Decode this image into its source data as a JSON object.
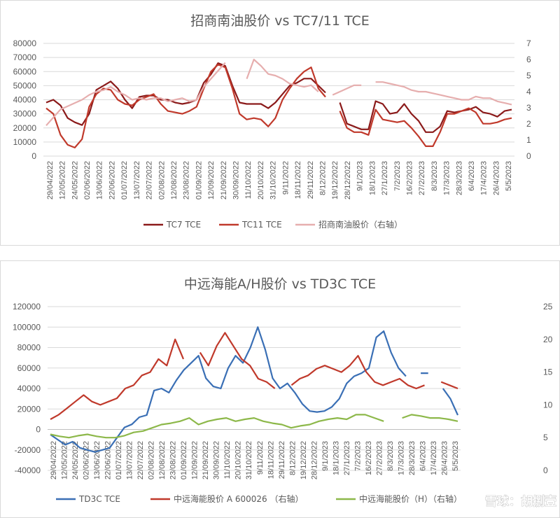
{
  "chart_data": [
    {
      "type": "line",
      "title": "招商南油股价 vs TC7/11 TCE",
      "xlabel": "",
      "ylabel": "",
      "ylim": [
        0,
        80000
      ],
      "y2lim": [
        0,
        7
      ],
      "yticks": [
        "0",
        "10000",
        "20000",
        "30000",
        "40000",
        "50000",
        "60000",
        "70000",
        "80000"
      ],
      "y2ticks": [
        "0",
        "1",
        "2",
        "3",
        "4",
        "5",
        "6",
        "7"
      ],
      "x_tick_labels": [
        "29/04/2022",
        "12/05/2022",
        "24/05/2022",
        "02/06/2022",
        "13/06/2022",
        "22/06/2022",
        "01/07/2022",
        "13/07/2022",
        "22/07/2022",
        "02/08/2022",
        "12/08/2022",
        "23/08/2022",
        "01/09/2022",
        "12/09/2022",
        "21/09/2022",
        "30/09/2022",
        "11/10/2022",
        "20/10/2022",
        "31/10/2022",
        "9/11/2022",
        "18/11/2022",
        "29/11/2022",
        "8/12/2022",
        "19/12/2022",
        "28/12/2022",
        "9/1/2023",
        "18/1/2023",
        "27/1/2023",
        "7/2/2023",
        "16/2/2023",
        "27/2/2023",
        "8/3/2023",
        "17/3/2023",
        "28/3/2023",
        "6/4/2023",
        "17/4/2023",
        "26/4/2023",
        "5/5/2023"
      ],
      "legend_position": "bottom",
      "grid": true,
      "series": [
        {
          "name": "TC7 TCE",
          "axis": "left",
          "color": "#8b1a1a",
          "values": [
            38000,
            40000,
            36000,
            27000,
            24000,
            22000,
            30000,
            47000,
            50000,
            53000,
            48000,
            40000,
            34000,
            42000,
            43000,
            43000,
            40000,
            40000,
            38000,
            37000,
            38000,
            40000,
            52000,
            58000,
            66000,
            64000,
            50000,
            38000,
            37000,
            37000,
            37000,
            34000,
            38000,
            44000,
            50000,
            52000,
            55000,
            55000,
            50000,
            45000,
            null,
            38000,
            23000,
            21000,
            19000,
            19000,
            39000,
            37000,
            30000,
            31000,
            37000,
            30000,
            25000,
            17000,
            17000,
            21000,
            32000,
            31000,
            32000,
            33000,
            35000,
            31000,
            30000,
            28000,
            32000,
            33000
          ]
        },
        {
          "name": "TC11 TCE",
          "axis": "left",
          "color": "#c0392b",
          "values": [
            34000,
            30000,
            15000,
            8000,
            6000,
            12000,
            35000,
            44000,
            48000,
            47000,
            40000,
            37000,
            36000,
            40000,
            42000,
            44000,
            37000,
            32000,
            31000,
            30000,
            32000,
            35000,
            48000,
            60000,
            65000,
            63000,
            48000,
            30000,
            26000,
            27000,
            26000,
            21000,
            27000,
            40000,
            48000,
            55000,
            60000,
            63000,
            48000,
            42000,
            null,
            32000,
            20000,
            17000,
            17000,
            15000,
            33000,
            26000,
            25000,
            24000,
            25000,
            20000,
            14000,
            7000,
            7000,
            17000,
            30000,
            30000,
            32000,
            34000,
            31000,
            23000,
            23000,
            24000,
            26000,
            27000
          ]
        },
        {
          "name": "招商南油股价（右轴）",
          "axis": "right",
          "color": "#e6aeae",
          "values": [
            1.9,
            2.4,
            2.9,
            3.1,
            3.3,
            3.5,
            3.8,
            4.0,
            4.1,
            4.3,
            4.0,
            3.8,
            3.5,
            3.6,
            3.5,
            3.6,
            3.6,
            3.4,
            3.5,
            3.6,
            3.4,
            3.5,
            4.3,
            4.8,
            5.3,
            5.8,
            null,
            null,
            4.8,
            6.0,
            5.6,
            5.1,
            5.0,
            4.8,
            4.5,
            4.4,
            4.3,
            4.4,
            4.0,
            null,
            3.8,
            4.0,
            4.2,
            4.4,
            4.4,
            null,
            4.6,
            4.6,
            4.5,
            4.4,
            4.3,
            4.1,
            4.0,
            4.0,
            3.9,
            3.8,
            3.7,
            3.6,
            3.5,
            3.5,
            3.7,
            3.6,
            3.6,
            3.4,
            3.3,
            3.2
          ]
        }
      ]
    },
    {
      "type": "line",
      "title": "中远海能A/H股价 vs TD3C TCE",
      "xlabel": "",
      "ylabel": "",
      "ylim": [
        -40000,
        120000
      ],
      "y2lim": [
        0,
        25
      ],
      "yticks": [
        "-40000",
        "-20000",
        "0",
        "20000",
        "40000",
        "60000",
        "80000",
        "100000",
        "120000"
      ],
      "y2ticks": [
        "0",
        "5",
        "10",
        "15",
        "20",
        "25"
      ],
      "x_tick_labels": [
        "29/04/2022",
        "12/05/2022",
        "24/05/2022",
        "02/06/2022",
        "13/06/2022",
        "22/06/2022",
        "01/07/2022",
        "13/07/2022",
        "22/07/2022",
        "02/08/2022",
        "12/08/2022",
        "23/08/2022",
        "01/09/2022",
        "12/09/2022",
        "21/09/2022",
        "30/09/2022",
        "11/10/2022",
        "20/10/2022",
        "31/10/2022",
        "9/11/2022",
        "18/11/2022",
        "29/11/2022",
        "8/12/2022",
        "19/12/2022",
        "28/12/2022",
        "9/1/2023",
        "18/1/2023",
        "27/1/2023",
        "7/2/2023",
        "16/2/2023",
        "27/2/2023",
        "8/3/2023",
        "17/3/2023",
        "28/3/2023",
        "6/4/2023",
        "17/4/2023",
        "26/4/2023",
        "5/5/2023"
      ],
      "legend_position": "bottom",
      "grid": true,
      "series": [
        {
          "name": "TD3C TCE",
          "axis": "left",
          "color": "#3a6fb5",
          "values": [
            -5000,
            -10000,
            -15000,
            -12000,
            -18000,
            -20000,
            -22000,
            -20000,
            -18000,
            -8000,
            2000,
            5000,
            12000,
            14000,
            38000,
            40000,
            36000,
            48000,
            58000,
            65000,
            72000,
            50000,
            42000,
            40000,
            60000,
            72000,
            65000,
            80000,
            100000,
            78000,
            50000,
            40000,
            45000,
            36000,
            25000,
            18000,
            17000,
            18000,
            22000,
            30000,
            45000,
            52000,
            55000,
            60000,
            90000,
            96000,
            75000,
            60000,
            52000,
            null,
            55000,
            55000,
            null,
            40000,
            30000,
            14000
          ]
        },
        {
          "name": "中远海能股价 A 600026 （右轴）",
          "axis": "right",
          "color": "#c0392b",
          "values": [
            7.8,
            8.5,
            9.5,
            10.5,
            11.5,
            10.5,
            10.0,
            10.5,
            11.0,
            12.5,
            13.0,
            14.5,
            15.0,
            17.0,
            16.0,
            20.0,
            17.0,
            null,
            18.0,
            16.0,
            19.0,
            21.0,
            19.0,
            17.0,
            16.0,
            14.0,
            13.5,
            12.5,
            null,
            13.0,
            14.0,
            14.5,
            15.5,
            16.0,
            15.5,
            15.0,
            16.0,
            17.5,
            15.0,
            13.5,
            13.0,
            13.5,
            14.0,
            13.0,
            12.5,
            13.0,
            null,
            13.5,
            13.0,
            12.5
          ]
        },
        {
          "name": "中远海能股价（H）（右轴）",
          "axis": "right",
          "color": "#8db84a",
          "values": [
            5.5,
            5.2,
            5.0,
            5.3,
            5.5,
            5.2,
            5.0,
            5.0,
            5.3,
            5.8,
            6.0,
            6.5,
            7.0,
            7.2,
            7.5,
            8.0,
            7.0,
            7.5,
            7.8,
            8.0,
            7.5,
            7.8,
            8.0,
            7.5,
            7.2,
            7.0,
            6.5,
            6.8,
            7.0,
            7.5,
            7.8,
            8.0,
            7.8,
            8.5,
            8.5,
            8.0,
            7.5,
            null,
            8.0,
            8.5,
            8.3,
            8.0,
            8.0,
            7.8,
            7.5
          ]
        }
      ]
    }
  ],
  "watermark": "雪球：胡捌壹"
}
